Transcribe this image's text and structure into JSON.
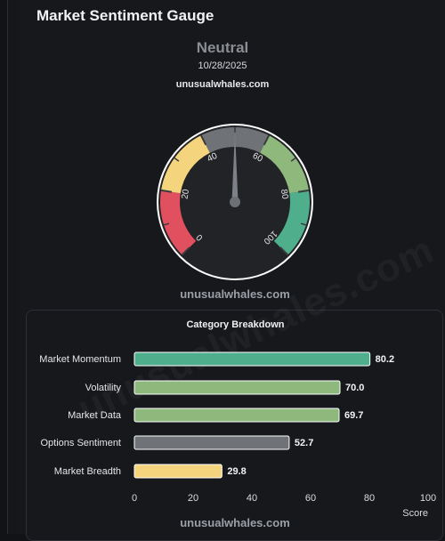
{
  "panel": {
    "title": "Market Sentiment Gauge",
    "sentiment_label": "Neutral",
    "date": "10/28/2025",
    "source": "unusualwhales.com"
  },
  "gauge": {
    "value": 50,
    "min": 0,
    "max": 100,
    "ticks": [
      "0",
      "20",
      "40",
      "60",
      "80",
      "100"
    ],
    "watermark": "unusualwhales.com",
    "zones": [
      {
        "from": 0,
        "to": 20,
        "color": "#e0505f"
      },
      {
        "from": 20,
        "to": 40,
        "color": "#f4d47c"
      },
      {
        "from": 40,
        "to": 60,
        "color": "#6f7276"
      },
      {
        "from": 60,
        "to": 80,
        "color": "#8eb87c"
      },
      {
        "from": 80,
        "to": 100,
        "color": "#4fae8c"
      }
    ]
  },
  "breakdown": {
    "title": "Category Breakdown",
    "x_label": "Score",
    "watermark": "unusualwhales.com",
    "chart_data": {
      "type": "bar",
      "orientation": "horizontal",
      "title": "Category Breakdown",
      "xlabel": "Score",
      "xlim": [
        0,
        100
      ],
      "x_ticks": [
        "0",
        "20",
        "40",
        "60",
        "80",
        "100"
      ],
      "categories": [
        "Market Momentum",
        "Volatility",
        "Market Data",
        "Options Sentiment",
        "Market Breadth"
      ],
      "values": [
        80.2,
        70.0,
        69.7,
        52.7,
        29.8
      ],
      "value_labels": [
        "80.2",
        "70.0",
        "69.7",
        "52.7",
        "29.8"
      ],
      "colors": [
        "#4fae8c",
        "#8eb87c",
        "#8eb87c",
        "#6f7276",
        "#f4d47c"
      ]
    }
  }
}
